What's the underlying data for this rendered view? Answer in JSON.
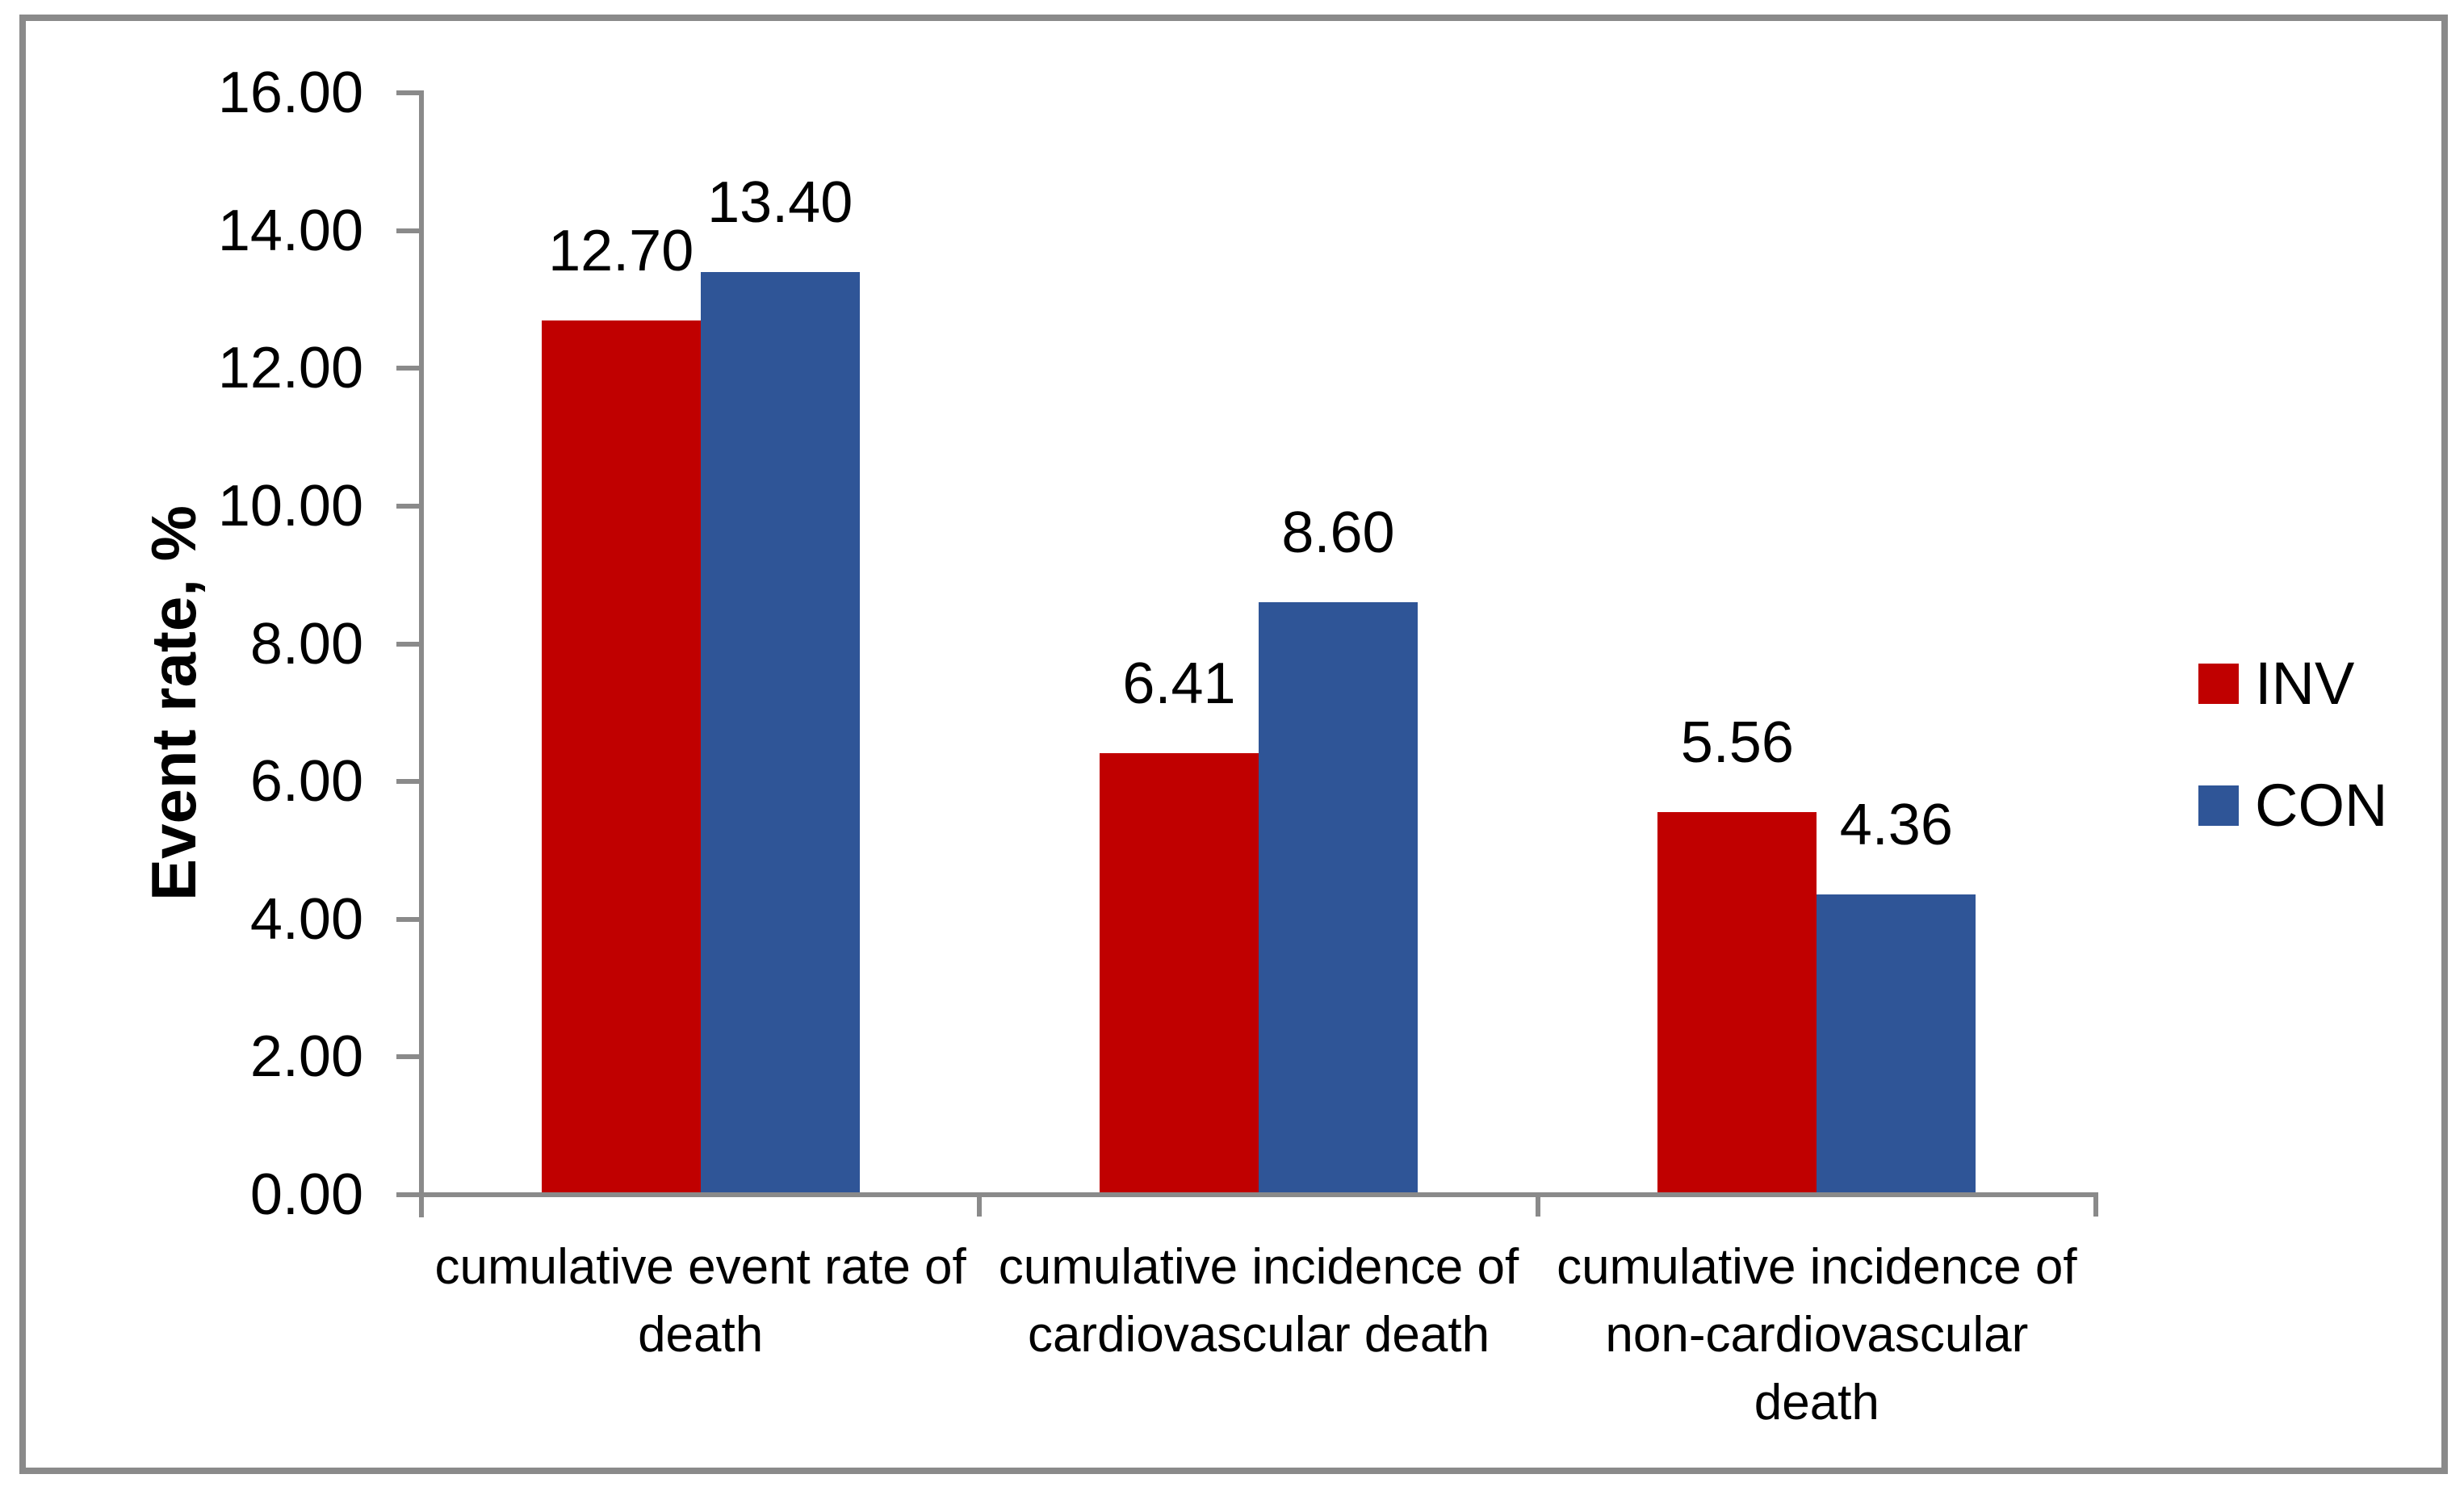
{
  "chart_data": {
    "type": "bar",
    "title": "",
    "xlabel": "",
    "ylabel": "Event rate, %",
    "ylim": [
      0,
      16
    ],
    "ytick_labels": [
      "0.00",
      "2.00",
      "4.00",
      "6.00",
      "8.00",
      "10.00",
      "12.00",
      "14.00",
      "16.00"
    ],
    "grid": false,
    "legend_position": "right",
    "categories": [
      {
        "lines": [
          "cumulative event rate of",
          "death"
        ]
      },
      {
        "lines": [
          "cumulative incidence of",
          "cardiovascular death"
        ]
      },
      {
        "lines": [
          "cumulative incidence of",
          "non-cardiovascular",
          "death"
        ]
      }
    ],
    "series": [
      {
        "name": "INV",
        "color": "#C00000",
        "values": [
          12.7,
          6.41,
          5.56
        ],
        "value_labels": [
          "12.70",
          "6.41",
          "5.56"
        ]
      },
      {
        "name": "CON",
        "color": "#2F5597",
        "values": [
          13.4,
          8.6,
          4.36
        ],
        "value_labels": [
          "13.40",
          "8.60",
          "4.36"
        ]
      }
    ]
  },
  "colors": {
    "axis": "#8A8A8A",
    "frame": "#8A8A8A",
    "text": "#000000",
    "background": "#FFFFFF"
  }
}
